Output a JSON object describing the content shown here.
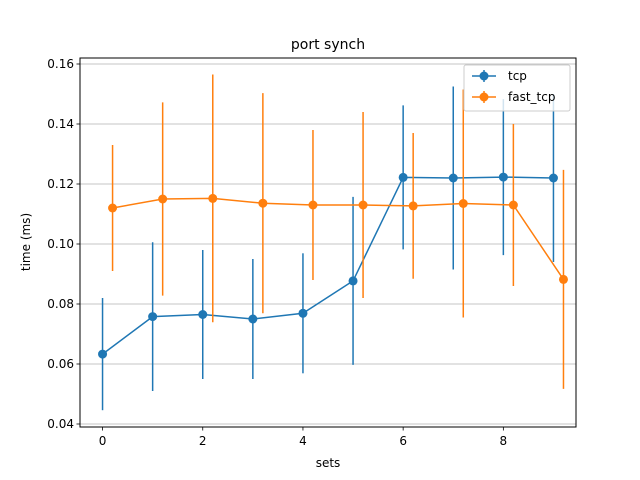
{
  "chart_data": {
    "type": "line",
    "title": "port synch",
    "xlabel": "sets",
    "ylabel": "time (ms)",
    "xlim": [
      -0.45,
      9.45
    ],
    "ylim": [
      0.039,
      0.162
    ],
    "xticks": [
      0,
      2,
      4,
      6,
      8
    ],
    "yticks": [
      0.04,
      0.06,
      0.08,
      0.1,
      0.12,
      0.14,
      0.16
    ],
    "ytick_labels": [
      "0.04",
      "0.06",
      "0.08",
      "0.10",
      "0.12",
      "0.14",
      "0.16"
    ],
    "grid": "y",
    "legend_position": "top-right",
    "series": [
      {
        "name": "tcp",
        "color": "#1f77b4",
        "x": [
          0,
          1,
          2,
          3,
          4,
          5,
          6,
          7,
          8,
          9
        ],
        "y": [
          0.0633,
          0.0758,
          0.0765,
          0.075,
          0.0769,
          0.0877,
          0.1222,
          0.122,
          0.1223,
          0.122
        ],
        "err": [
          0.0187,
          0.0248,
          0.0215,
          0.02,
          0.02,
          0.028,
          0.024,
          0.0305,
          0.026,
          0.028
        ]
      },
      {
        "name": "fast_tcp",
        "color": "#ff7f0e",
        "x": [
          0.2,
          1.2,
          2.2,
          3.2,
          4.2,
          5.2,
          6.2,
          7.2,
          8.2,
          9.2
        ],
        "y": [
          0.112,
          0.115,
          0.1152,
          0.1136,
          0.113,
          0.113,
          0.1127,
          0.1135,
          0.113,
          0.0882
        ],
        "err": [
          0.021,
          0.0322,
          0.0413,
          0.0367,
          0.025,
          0.031,
          0.0243,
          0.038,
          0.027,
          0.0365
        ]
      }
    ]
  }
}
